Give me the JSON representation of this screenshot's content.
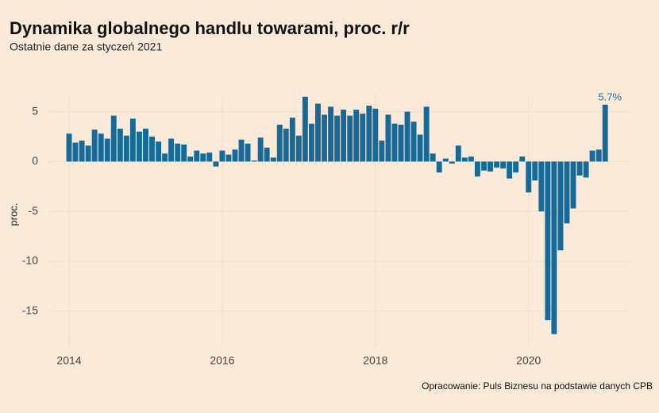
{
  "chart_data": {
    "type": "bar",
    "title": "Dynamika globalnego handlu towarami, proc. r/r",
    "subtitle": "Ostatnie dane za styczeń 2021",
    "y_label": "proc.",
    "caption": "Opracowanie: Puls Biznesu na podstawie danych CPB",
    "color": "#176a97",
    "label_color": "#1b72a3",
    "grid": true,
    "x": [
      2014.0,
      2014.083,
      2014.167,
      2014.25,
      2014.333,
      2014.417,
      2014.5,
      2014.583,
      2014.667,
      2014.75,
      2014.833,
      2014.917,
      2015.0,
      2015.083,
      2015.167,
      2015.25,
      2015.333,
      2015.417,
      2015.5,
      2015.583,
      2015.667,
      2015.75,
      2015.833,
      2015.917,
      2016.0,
      2016.083,
      2016.167,
      2016.25,
      2016.333,
      2016.417,
      2016.5,
      2016.583,
      2016.667,
      2016.75,
      2016.833,
      2016.917,
      2017.0,
      2017.083,
      2017.167,
      2017.25,
      2017.333,
      2017.417,
      2017.5,
      2017.583,
      2017.667,
      2017.75,
      2017.833,
      2017.917,
      2018.0,
      2018.083,
      2018.167,
      2018.25,
      2018.333,
      2018.417,
      2018.5,
      2018.583,
      2018.667,
      2018.75,
      2018.833,
      2018.917,
      2019.0,
      2019.083,
      2019.167,
      2019.25,
      2019.333,
      2019.417,
      2019.5,
      2019.583,
      2019.667,
      2019.75,
      2019.833,
      2019.917,
      2020.0,
      2020.083,
      2020.167,
      2020.25,
      2020.333,
      2020.417,
      2020.5,
      2020.583,
      2020.667,
      2020.75,
      2020.833,
      2020.917,
      2021.0
    ],
    "values": [
      2.8,
      1.9,
      2.1,
      1.6,
      3.2,
      2.8,
      2.3,
      4.6,
      3.3,
      2.6,
      4.3,
      3.0,
      3.3,
      2.5,
      2.0,
      0.8,
      2.3,
      1.8,
      1.7,
      0.5,
      1.1,
      0.8,
      0.9,
      -0.5,
      1.1,
      0.7,
      1.2,
      2.2,
      1.8,
      0.1,
      2.4,
      1.4,
      0.4,
      3.7,
      3.3,
      4.4,
      2.6,
      6.5,
      3.8,
      5.8,
      4.7,
      5.5,
      4.6,
      5.2,
      4.6,
      5.2,
      4.8,
      5.6,
      5.3,
      2.1,
      4.7,
      3.8,
      3.7,
      5.0,
      4.0,
      2.7,
      5.5,
      0.8,
      -1.1,
      0.3,
      -0.2,
      1.6,
      0.4,
      0.5,
      -1.5,
      -0.9,
      -1.0,
      -0.6,
      -0.7,
      -1.7,
      -1.1,
      0.5,
      -3.1,
      -1.9,
      -5.0,
      -15.9,
      -17.3,
      -8.9,
      -6.2,
      -4.7,
      -1.4,
      -1.6,
      1.1,
      1.2,
      5.7
    ],
    "value_labels": [
      null,
      null,
      null,
      null,
      null,
      null,
      null,
      null,
      null,
      null,
      null,
      null,
      null,
      null,
      null,
      null,
      null,
      null,
      null,
      null,
      null,
      null,
      null,
      null,
      null,
      null,
      null,
      null,
      null,
      null,
      null,
      null,
      null,
      null,
      null,
      null,
      null,
      null,
      null,
      null,
      null,
      null,
      null,
      null,
      null,
      null,
      null,
      null,
      null,
      null,
      null,
      null,
      null,
      null,
      null,
      null,
      null,
      null,
      null,
      null,
      null,
      null,
      null,
      null,
      null,
      null,
      null,
      null,
      null,
      null,
      null,
      null,
      null,
      null,
      null,
      null,
      null,
      null,
      null,
      null,
      null,
      null,
      null,
      null,
      "5.7%"
    ],
    "xlim": [
      2013.72,
      2021.34
    ],
    "xticks": [
      2014,
      2016,
      2018,
      2020
    ],
    "ylim": [
      -18.6,
      6.8
    ],
    "yticks": [
      -15,
      -10,
      -5,
      0,
      5
    ]
  }
}
